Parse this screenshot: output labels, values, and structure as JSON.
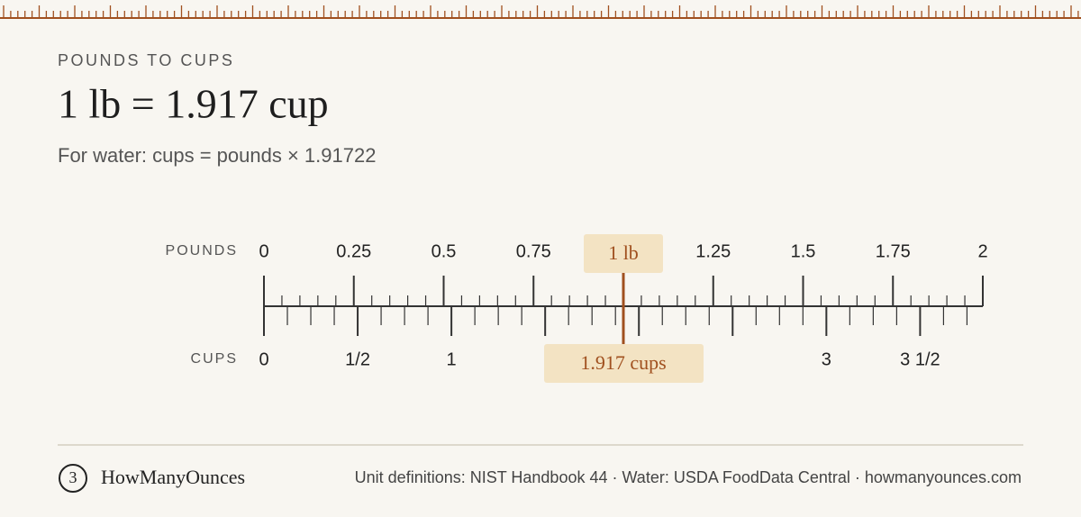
{
  "header": {
    "eyebrow": "POUNDS TO CUPS",
    "title": "1 lb = 1.917 cup",
    "formula": "For water: cups = pounds × 1.91722"
  },
  "scale": {
    "top_label": "POUNDS",
    "bottom_label": "CUPS",
    "factor": 1.91722,
    "pounds_range": [
      0,
      2
    ],
    "pounds_ticks": [
      0,
      0.25,
      0.5,
      0.75,
      {
        "value": 1,
        "label": null
      },
      1.25,
      1.5,
      1.75,
      2
    ],
    "cups_ticks": [
      0,
      {
        "value": 0.5,
        "label": "1/2"
      },
      1,
      {
        "value": 1.5,
        "label": null
      },
      {
        "value": 2,
        "label": null
      },
      {
        "value": 2.5,
        "label": null
      },
      3,
      {
        "value": 3.5,
        "label": "3 1/2"
      }
    ],
    "pointer": {
      "value": 1,
      "label": "1 lb",
      "result_label": "1.917 cups"
    }
  },
  "footer": {
    "brand": "HowManyOunces",
    "source": "Unit definitions: NIST Handbook 44 · Water: USDA FoodData Central · howmanyounces.com"
  }
}
